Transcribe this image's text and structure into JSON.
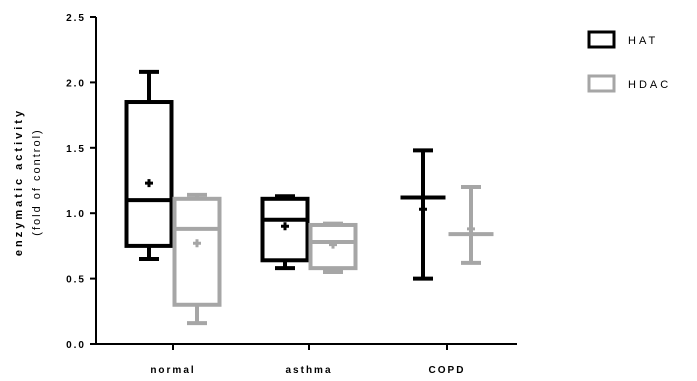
{
  "chart_data": {
    "type": "boxplot",
    "ylabel": "enzymatic activity",
    "ylabel_sub": "(fold of control)",
    "xlabel": "",
    "ylim": [
      0,
      2.5
    ],
    "yticks": [
      "0.0",
      "0.5",
      "1.0",
      "1.5",
      "2.0",
      "2.5"
    ],
    "categories": [
      "normal",
      "asthma",
      "COPD"
    ],
    "legend_position": "top-right",
    "series": [
      {
        "name": "HAT",
        "color": "#000000",
        "boxes": [
          {
            "category": "normal",
            "min": 0.65,
            "q1": 0.75,
            "median": 1.1,
            "q3": 1.85,
            "max": 2.08,
            "mean": 1.23
          },
          {
            "category": "asthma",
            "min": 0.58,
            "q1": 0.64,
            "median": 0.95,
            "q3": 1.11,
            "max": 1.13,
            "mean": 0.9
          },
          {
            "category": "COPD",
            "min": 0.5,
            "q1": 1.12,
            "median": 1.12,
            "q3": 1.12,
            "max": 1.48,
            "mean": 1.03
          }
        ]
      },
      {
        "name": "HDAC",
        "color": "#a6a6a6",
        "boxes": [
          {
            "category": "normal",
            "min": 0.16,
            "q1": 0.3,
            "median": 0.88,
            "q3": 1.11,
            "max": 1.14,
            "mean": 0.77
          },
          {
            "category": "asthma",
            "min": 0.55,
            "q1": 0.58,
            "median": 0.78,
            "q3": 0.91,
            "max": 0.92,
            "mean": 0.76
          },
          {
            "category": "COPD",
            "min": 0.62,
            "q1": 0.84,
            "median": 0.84,
            "q3": 0.84,
            "max": 1.2,
            "mean": 0.88
          }
        ]
      }
    ]
  }
}
